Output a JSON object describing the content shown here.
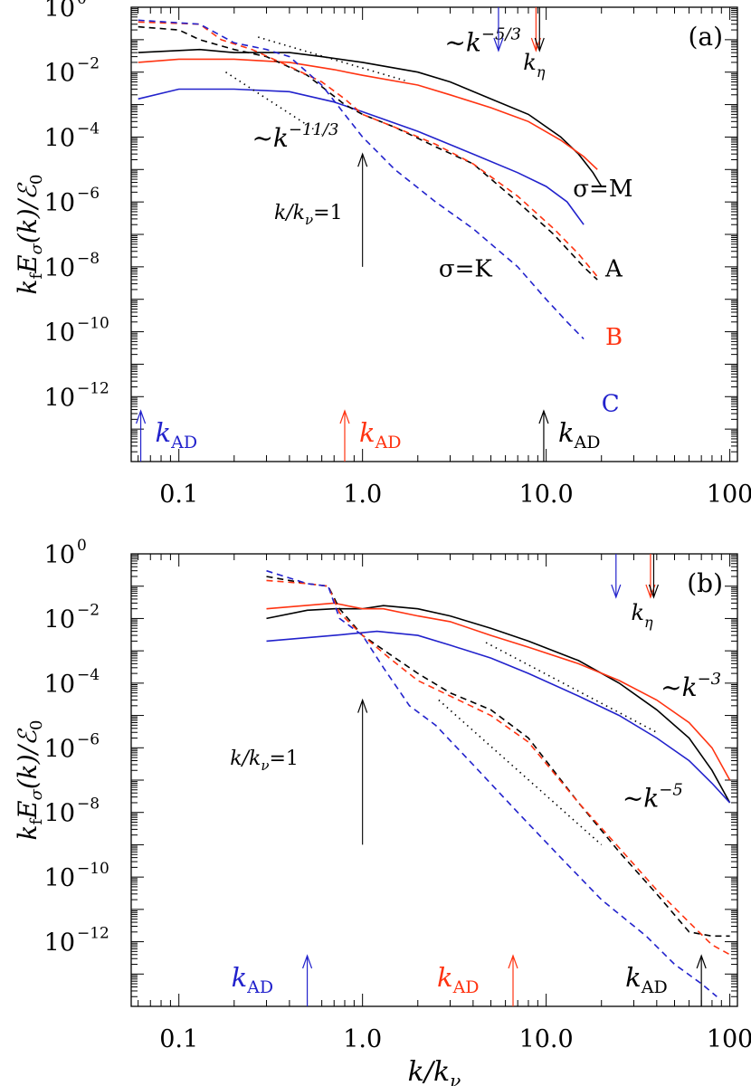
{
  "colors": {
    "A": "#000000",
    "B": "#ff3311",
    "C": "#2222cc",
    "annot": "#000000"
  },
  "chart_data": [
    {
      "type": "line",
      "panel_label": "(a)",
      "xscale": "log",
      "yscale": "log",
      "xlim": [
        0.055,
        110
      ],
      "ylim": [
        1e-14,
        1
      ],
      "x_ticks": [
        0.1,
        1,
        10,
        100
      ],
      "x_tick_labels": [
        "0.1",
        "1.0",
        "10.0",
        "100"
      ],
      "y_ticks": [
        1,
        0.01,
        0.0001,
        1e-06,
        1e-08,
        1e-10,
        1e-12
      ],
      "y_tick_base": "10",
      "y_tick_exps": [
        "0",
        "−2",
        "−4",
        "−6",
        "−8",
        "−10",
        "−12"
      ],
      "xlabel": "",
      "ylabel": {
        "pre": "k",
        "sub1": "f",
        "mid": "E",
        "sub2": "σ",
        "post": "(k)/ℰ",
        "sub3": "0"
      },
      "series": [
        {
          "run": "A",
          "kind": "M",
          "color_key": "A",
          "dash": false,
          "points": [
            [
              0.06,
              0.04
            ],
            [
              0.13,
              0.05
            ],
            [
              0.2,
              0.04
            ],
            [
              0.4,
              0.04
            ],
            [
              0.6,
              0.03
            ],
            [
              1.0,
              0.02
            ],
            [
              2,
              0.01
            ],
            [
              3,
              0.005
            ],
            [
              5,
              0.0015
            ],
            [
              8,
              0.0005
            ],
            [
              12,
              0.0001
            ],
            [
              15,
              3e-05
            ],
            [
              18,
              8e-06
            ],
            [
              20,
              3e-06
            ]
          ]
        },
        {
          "run": "B",
          "kind": "M",
          "color_key": "B",
          "dash": false,
          "points": [
            [
              0.06,
              0.02
            ],
            [
              0.1,
              0.025
            ],
            [
              0.2,
              0.025
            ],
            [
              0.4,
              0.02
            ],
            [
              0.7,
              0.012
            ],
            [
              1.0,
              0.008
            ],
            [
              2,
              0.004
            ],
            [
              3,
              0.002
            ],
            [
              5,
              0.0008
            ],
            [
              8,
              0.0003
            ],
            [
              12,
              8e-05
            ],
            [
              16,
              2.5e-05
            ],
            [
              19,
              1e-05
            ]
          ]
        },
        {
          "run": "C",
          "kind": "M",
          "color_key": "C",
          "dash": false,
          "points": [
            [
              0.06,
              0.0015
            ],
            [
              0.1,
              0.003
            ],
            [
              0.2,
              0.003
            ],
            [
              0.4,
              0.0025
            ],
            [
              0.7,
              0.0012
            ],
            [
              1.0,
              0.0006
            ],
            [
              2,
              0.00015
            ],
            [
              4,
              3e-05
            ],
            [
              7,
              8e-06
            ],
            [
              10,
              3e-06
            ],
            [
              13,
              1e-06
            ],
            [
              16,
              2e-07
            ]
          ]
        },
        {
          "run": "A",
          "kind": "K",
          "color_key": "A",
          "dash": true,
          "points": [
            [
              0.06,
              0.25
            ],
            [
              0.1,
              0.2
            ],
            [
              0.13,
              0.1
            ],
            [
              0.2,
              0.05
            ],
            [
              0.3,
              0.03
            ],
            [
              0.5,
              0.008
            ],
            [
              0.8,
              0.001
            ],
            [
              1.0,
              0.0005
            ],
            [
              1.5,
              0.0002
            ],
            [
              2.5,
              5e-05
            ],
            [
              4,
              1.5e-05
            ],
            [
              7,
              1e-06
            ],
            [
              11,
              1e-07
            ],
            [
              16,
              1e-08
            ],
            [
              19,
              4e-09
            ]
          ]
        },
        {
          "run": "B",
          "kind": "K",
          "color_key": "B",
          "dash": true,
          "points": [
            [
              0.06,
              0.35
            ],
            [
              0.13,
              0.3
            ],
            [
              0.17,
              0.1
            ],
            [
              0.25,
              0.05
            ],
            [
              0.4,
              0.015
            ],
            [
              0.6,
              0.005
            ],
            [
              0.8,
              0.0015
            ],
            [
              1.0,
              0.0005
            ],
            [
              1.5,
              0.0002
            ],
            [
              2.5,
              6e-05
            ],
            [
              4,
              1.5e-05
            ],
            [
              7,
              1.5e-06
            ],
            [
              11,
              1.5e-07
            ],
            [
              15,
              2.5e-08
            ],
            [
              19,
              5e-09
            ]
          ]
        },
        {
          "run": "C",
          "kind": "K",
          "color_key": "C",
          "dash": true,
          "points": [
            [
              0.06,
              0.4
            ],
            [
              0.13,
              0.3
            ],
            [
              0.2,
              0.08
            ],
            [
              0.3,
              0.05
            ],
            [
              0.4,
              0.03
            ],
            [
              0.6,
              0.004
            ],
            [
              0.8,
              0.0005
            ],
            [
              1.0,
              0.0001
            ],
            [
              1.5,
              1e-05
            ],
            [
              2.5,
              1e-06
            ],
            [
              4,
              1.5e-07
            ],
            [
              7,
              1e-08
            ],
            [
              10,
              1e-09
            ],
            [
              13,
              2e-10
            ],
            [
              16,
              6e-11
            ]
          ]
        }
      ],
      "guides": [
        {
          "points": [
            [
              0.27,
              0.12
            ],
            [
              1.7,
              0.0055
            ]
          ],
          "label": "~k",
          "exp": "−5/3",
          "label_at": [
            2.8,
            0.045
          ]
        },
        {
          "points": [
            [
              0.18,
              0.01
            ],
            [
              0.6,
              0.00012
            ]
          ],
          "label": "~k",
          "exp": "−11/3",
          "label_at": [
            0.25,
            5e-05
          ]
        }
      ],
      "k_eta": {
        "label": "k",
        "sub": "η",
        "label_at": [
          7.5,
          0.012
        ],
        "arrows": [
          {
            "x": 5.5,
            "color_key": "C"
          },
          {
            "x": 8.8,
            "color_key": "B"
          },
          {
            "x": 9.2,
            "color_key": "A"
          }
        ]
      },
      "knu_arrow": {
        "x": 1.0,
        "from": 1e-08,
        "to": 3e-05,
        "label": "k/k",
        "sub": "ν",
        "tail": "=1",
        "label_at": [
          0.33,
          3e-07
        ]
      },
      "kad": [
        {
          "x": 0.062,
          "color_key": "C",
          "label": "k",
          "sub": "AD",
          "label_side": "right"
        },
        {
          "x": 0.8,
          "color_key": "B",
          "label": "k",
          "sub": "AD",
          "label_side": "right"
        },
        {
          "x": 9.7,
          "color_key": "A",
          "label": "k",
          "sub": "AD",
          "label_side": "right"
        }
      ],
      "annotations": [
        {
          "text": "σ=M",
          "at": [
            14,
            1.5e-06
          ],
          "color_key": "A"
        },
        {
          "text": "σ=K",
          "at": [
            2.6,
            5e-09
          ],
          "color_key": "A"
        },
        {
          "text": "A",
          "at": [
            21,
            5e-09
          ],
          "color_key": "A"
        },
        {
          "text": "B",
          "at": [
            21,
            4e-11
          ],
          "color_key": "B"
        },
        {
          "text": "C",
          "at": [
            20,
            3.5e-13
          ],
          "color_key": "C"
        }
      ]
    },
    {
      "type": "line",
      "panel_label": "(b)",
      "xscale": "log",
      "yscale": "log",
      "xlim": [
        0.055,
        110
      ],
      "ylim": [
        1e-14,
        1
      ],
      "x_ticks": [
        0.1,
        1,
        10,
        100
      ],
      "x_tick_labels": [
        "0.1",
        "1.0",
        "10.0",
        "100"
      ],
      "y_ticks": [
        1,
        0.01,
        0.0001,
        1e-06,
        1e-08,
        1e-10,
        1e-12
      ],
      "y_tick_base": "10",
      "y_tick_exps": [
        "0",
        "−2",
        "−4",
        "−6",
        "−8",
        "−10",
        "−12"
      ],
      "xlabel": {
        "pre": "k/k",
        "sub": "ν"
      },
      "ylabel": {
        "pre": "k",
        "sub1": "f",
        "mid": "E",
        "sub2": "σ",
        "post": "(k)/ℰ",
        "sub3": "0"
      },
      "series": [
        {
          "run": "A",
          "kind": "M",
          "color_key": "A",
          "dash": false,
          "points": [
            [
              0.3,
              0.01
            ],
            [
              0.5,
              0.018
            ],
            [
              0.7,
              0.02
            ],
            [
              1.0,
              0.02
            ],
            [
              1.3,
              0.025
            ],
            [
              2,
              0.02
            ],
            [
              3,
              0.012
            ],
            [
              5,
              0.005
            ],
            [
              8,
              0.002
            ],
            [
              15,
              0.0005
            ],
            [
              25,
              0.0001
            ],
            [
              40,
              1.5e-05
            ],
            [
              60,
              2e-06
            ],
            [
              80,
              2e-07
            ],
            [
              100,
              2e-08
            ]
          ]
        },
        {
          "run": "B",
          "kind": "M",
          "color_key": "B",
          "dash": false,
          "points": [
            [
              0.3,
              0.02
            ],
            [
              0.7,
              0.03
            ],
            [
              1.0,
              0.02
            ],
            [
              1.3,
              0.02
            ],
            [
              2,
              0.012
            ],
            [
              3,
              0.008
            ],
            [
              5,
              0.003
            ],
            [
              8,
              0.0013
            ],
            [
              15,
              0.0004
            ],
            [
              25,
              0.00012
            ],
            [
              40,
              3e-05
            ],
            [
              60,
              6e-06
            ],
            [
              80,
              1e-06
            ],
            [
              100,
              1e-07
            ]
          ]
        },
        {
          "run": "C",
          "kind": "M",
          "color_key": "C",
          "dash": false,
          "points": [
            [
              0.3,
              0.002
            ],
            [
              0.7,
              0.003
            ],
            [
              1.2,
              0.004
            ],
            [
              2,
              0.003
            ],
            [
              3,
              0.0015
            ],
            [
              5,
              0.0006
            ],
            [
              8,
              0.0002
            ],
            [
              15,
              4e-05
            ],
            [
              25,
              1e-05
            ],
            [
              40,
              2e-06
            ],
            [
              60,
              4e-07
            ],
            [
              80,
              8e-08
            ],
            [
              100,
              2e-08
            ]
          ]
        },
        {
          "run": "A",
          "kind": "K",
          "color_key": "A",
          "dash": true,
          "points": [
            [
              0.3,
              0.2
            ],
            [
              0.5,
              0.12
            ],
            [
              0.65,
              0.1
            ],
            [
              0.75,
              0.02
            ],
            [
              1.0,
              0.003
            ],
            [
              1.4,
              0.0008
            ],
            [
              2,
              0.0002
            ],
            [
              3,
              5e-05
            ],
            [
              5,
              1.5e-05
            ],
            [
              8,
              2e-06
            ],
            [
              15,
              2e-08
            ],
            [
              25,
              6e-10
            ],
            [
              40,
              3e-11
            ],
            [
              60,
              2e-12
            ],
            [
              80,
              1.5e-12
            ],
            [
              100,
              1.5e-12
            ]
          ]
        },
        {
          "run": "B",
          "kind": "K",
          "color_key": "B",
          "dash": true,
          "points": [
            [
              0.3,
              0.15
            ],
            [
              0.5,
              0.12
            ],
            [
              0.65,
              0.1
            ],
            [
              0.75,
              0.015
            ],
            [
              1.0,
              0.003
            ],
            [
              1.4,
              0.0006
            ],
            [
              2,
              0.00012
            ],
            [
              3,
              4e-05
            ],
            [
              5,
              1e-05
            ],
            [
              8,
              1.5e-06
            ],
            [
              15,
              2e-08
            ],
            [
              25,
              8e-10
            ],
            [
              40,
              4e-11
            ],
            [
              60,
              4e-12
            ],
            [
              80,
              8e-13
            ],
            [
              100,
              4e-13
            ]
          ]
        },
        {
          "run": "C",
          "kind": "K",
          "color_key": "C",
          "dash": true,
          "points": [
            [
              0.3,
              0.3
            ],
            [
              0.5,
              0.12
            ],
            [
              0.65,
              0.1
            ],
            [
              0.75,
              0.01
            ],
            [
              1.0,
              0.003
            ],
            [
              1.3,
              0.0003
            ],
            [
              1.8,
              2e-05
            ],
            [
              2.5,
              5e-06
            ],
            [
              4,
              3e-07
            ],
            [
              7,
              1e-08
            ],
            [
              12,
              4e-10
            ],
            [
              20,
              2e-11
            ],
            [
              35,
              1.5e-12
            ],
            [
              50,
              2e-13
            ],
            [
              70,
              5e-14
            ],
            [
              85,
              2e-14
            ]
          ]
        }
      ],
      "guides": [
        {
          "points": [
            [
              4.7,
              0.0018
            ],
            [
              40,
              3e-06
            ]
          ],
          "label": "~k",
          "exp": "−3",
          "label_at": [
            42,
            4e-05
          ]
        },
        {
          "points": [
            [
              2.6,
              3e-05
            ],
            [
              20,
              1e-09
            ]
          ],
          "label": "~k",
          "exp": "−5",
          "label_at": [
            26,
            1.5e-08
          ]
        }
      ],
      "k_eta": {
        "label": "k",
        "sub": "η",
        "label_at": [
          29,
          0.009
        ],
        "arrows": [
          {
            "x": 24,
            "color_key": "C"
          },
          {
            "x": 37,
            "color_key": "B"
          },
          {
            "x": 38.5,
            "color_key": "A"
          }
        ]
      },
      "knu_arrow": {
        "x": 1.0,
        "from": 1e-09,
        "to": 3e-05,
        "label": "k/k",
        "sub": "ν",
        "tail": "=1",
        "label_at": [
          0.19,
          3e-07
        ]
      },
      "kad": [
        {
          "x": 0.5,
          "color_key": "C",
          "label": "k",
          "sub": "AD",
          "label_side": "left"
        },
        {
          "x": 6.6,
          "color_key": "B",
          "label": "k",
          "sub": "AD",
          "label_side": "left"
        },
        {
          "x": 70,
          "color_key": "A",
          "label": "k",
          "sub": "AD",
          "label_side": "left"
        }
      ],
      "annotations": []
    }
  ]
}
